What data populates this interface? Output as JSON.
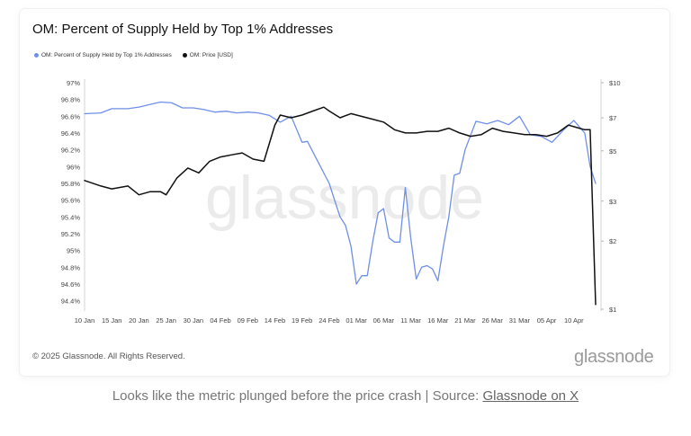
{
  "footer": {
    "copyright": "© 2025 Glassnode. All Rights Reserved.",
    "brand": "glassnode"
  },
  "caption": {
    "text": "Looks like the metric plunged before the price crash | Source: ",
    "link": "Glassnode on X"
  },
  "colors": {
    "supply_series": "#6f8fe8",
    "price_series": "#111111",
    "watermark": "#ebebeb"
  },
  "chart_data": {
    "type": "line",
    "title": "OM: Percent of Supply Held by Top 1% Addresses",
    "watermark": "glassnode",
    "legend_placement": "top-left",
    "grid": false,
    "x_ticks": [
      "10 Jan",
      "15 Jan",
      "20 Jan",
      "25 Jan",
      "30 Jan",
      "04 Feb",
      "09 Feb",
      "14 Feb",
      "19 Feb",
      "24 Feb",
      "01 Mar",
      "06 Mar",
      "11 Mar",
      "16 Mar",
      "21 Mar",
      "26 Mar",
      "31 Mar",
      "05 Apr",
      "10 Apr"
    ],
    "x_range": [
      "2025-01-10",
      "2025-04-15"
    ],
    "left_axis": {
      "ticks": [
        "97%",
        "96.8%",
        "96.6%",
        "96.4%",
        "96.2%",
        "96%",
        "95.8%",
        "95.6%",
        "95.4%",
        "95.2%",
        "95%",
        "94.8%",
        "94.6%",
        "94.4%"
      ],
      "ylim": [
        94.3,
        97.0
      ],
      "unit": "%"
    },
    "right_axis": {
      "ticks": [
        "$10",
        "$7",
        "$5",
        "$3",
        "$2",
        "$1"
      ],
      "tick_values": [
        10,
        7,
        5,
        3,
        2,
        1
      ],
      "scale": "log",
      "ylim": [
        1,
        10
      ],
      "unit": "USD"
    },
    "series": [
      {
        "name": "OM: Percent of Supply Held by Top 1% Addresses",
        "axis": "left",
        "x": [
          "2025-01-10",
          "2025-01-13",
          "2025-01-15",
          "2025-01-18",
          "2025-01-20",
          "2025-01-22",
          "2025-01-24",
          "2025-01-26",
          "2025-01-28",
          "2025-01-30",
          "2025-02-01",
          "2025-02-03",
          "2025-02-05",
          "2025-02-07",
          "2025-02-09",
          "2025-02-11",
          "2025-02-13",
          "2025-02-15",
          "2025-02-17",
          "2025-02-19",
          "2025-02-20",
          "2025-02-22",
          "2025-02-24",
          "2025-02-25",
          "2025-02-26",
          "2025-02-27",
          "2025-02-28",
          "2025-03-01",
          "2025-03-02",
          "2025-03-03",
          "2025-03-04",
          "2025-03-05",
          "2025-03-06",
          "2025-03-07",
          "2025-03-08",
          "2025-03-09",
          "2025-03-10",
          "2025-03-11",
          "2025-03-12",
          "2025-03-13",
          "2025-03-14",
          "2025-03-15",
          "2025-03-16",
          "2025-03-17",
          "2025-03-18",
          "2025-03-19",
          "2025-03-20",
          "2025-03-21",
          "2025-03-23",
          "2025-03-25",
          "2025-03-27",
          "2025-03-29",
          "2025-03-31",
          "2025-04-02",
          "2025-04-04",
          "2025-04-06",
          "2025-04-08",
          "2025-04-10",
          "2025-04-12",
          "2025-04-13",
          "2025-04-14"
        ],
        "values": [
          96.63,
          96.64,
          96.69,
          96.69,
          96.71,
          96.74,
          96.77,
          96.76,
          96.7,
          96.7,
          96.68,
          96.65,
          96.66,
          96.64,
          96.65,
          96.64,
          96.61,
          96.53,
          96.6,
          96.29,
          96.3,
          96.05,
          95.8,
          95.6,
          95.4,
          95.3,
          95.05,
          94.6,
          94.7,
          94.7,
          95.1,
          95.45,
          95.5,
          95.15,
          95.1,
          95.1,
          95.75,
          95.15,
          94.66,
          94.8,
          94.82,
          94.78,
          94.64,
          95.05,
          95.4,
          95.9,
          95.92,
          96.2,
          96.54,
          96.51,
          96.55,
          96.5,
          96.6,
          96.38,
          96.36,
          96.29,
          96.43,
          96.55,
          96.4,
          96.0,
          95.8
        ]
      },
      {
        "name": "OM: Price [USD]",
        "axis": "right",
        "x": [
          "2025-01-10",
          "2025-01-13",
          "2025-01-15",
          "2025-01-18",
          "2025-01-20",
          "2025-01-22",
          "2025-01-24",
          "2025-01-25",
          "2025-01-27",
          "2025-01-29",
          "2025-01-31",
          "2025-02-02",
          "2025-02-04",
          "2025-02-06",
          "2025-02-08",
          "2025-02-10",
          "2025-02-12",
          "2025-02-14",
          "2025-02-15",
          "2025-02-17",
          "2025-02-19",
          "2025-02-21",
          "2025-02-23",
          "2025-02-24",
          "2025-02-26",
          "2025-02-28",
          "2025-03-02",
          "2025-03-04",
          "2025-03-06",
          "2025-03-08",
          "2025-03-10",
          "2025-03-12",
          "2025-03-14",
          "2025-03-16",
          "2025-03-18",
          "2025-03-20",
          "2025-03-22",
          "2025-03-24",
          "2025-03-26",
          "2025-03-28",
          "2025-03-30",
          "2025-04-01",
          "2025-04-03",
          "2025-04-05",
          "2025-04-07",
          "2025-04-09",
          "2025-04-11",
          "2025-04-12",
          "2025-04-13",
          "2025-04-14"
        ],
        "values": [
          3.7,
          3.5,
          3.4,
          3.5,
          3.2,
          3.3,
          3.3,
          3.2,
          3.8,
          4.2,
          4.0,
          4.5,
          4.7,
          4.8,
          4.9,
          4.6,
          4.5,
          6.5,
          7.2,
          7.0,
          7.2,
          7.5,
          7.8,
          7.5,
          7.0,
          7.3,
          7.1,
          6.9,
          6.7,
          6.2,
          6.0,
          6.0,
          6.1,
          6.1,
          6.3,
          6.0,
          5.8,
          5.9,
          6.3,
          6.1,
          6.0,
          5.9,
          5.9,
          5.8,
          6.0,
          6.5,
          6.3,
          6.2,
          6.2,
          1.05
        ]
      }
    ]
  }
}
